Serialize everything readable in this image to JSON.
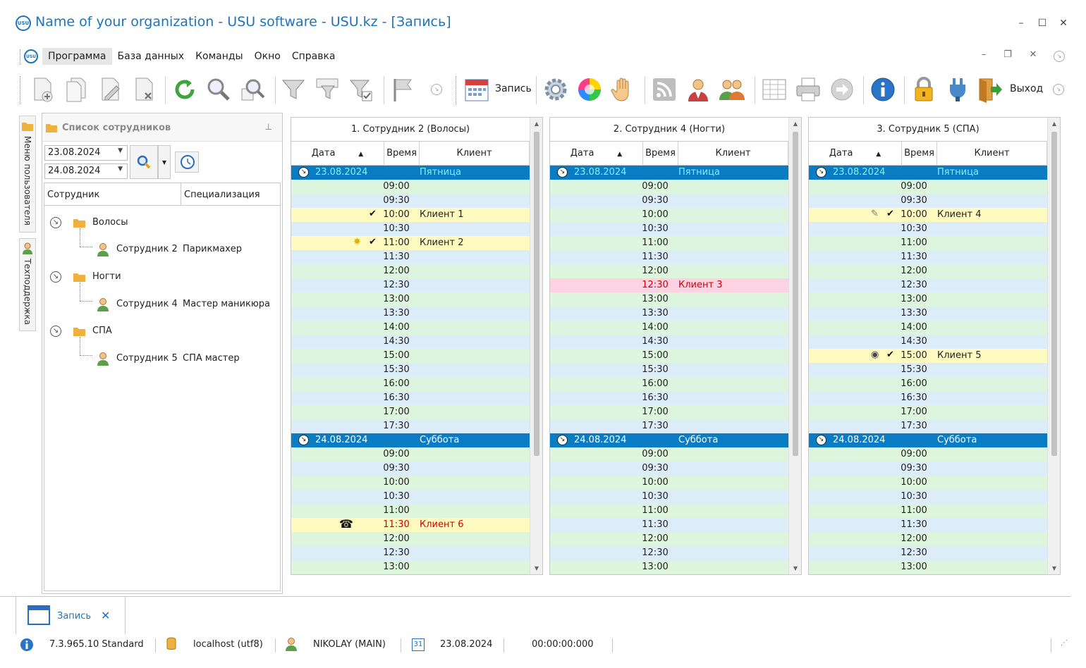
{
  "window": {
    "title": "Name of your organization - USU software - USU.kz - [Запись]",
    "logo_text": "USU",
    "controls": [
      "–",
      "☐",
      "✕"
    ]
  },
  "menu": {
    "items": [
      "Программа",
      "База данных",
      "Команды",
      "Окно",
      "Справка"
    ],
    "mdi_controls": [
      "–",
      "❐",
      "✕"
    ]
  },
  "toolbar": {
    "record_label": "Запись",
    "exit_label": "Выход"
  },
  "side_tabs": {
    "user_menu": "Меню пользователя",
    "support": "Техподдержка"
  },
  "employees_panel": {
    "title": "Список сотрудников",
    "date_from": "23.08.2024",
    "date_to": "24.08.2024",
    "columns": [
      "Сотрудник",
      "Специализация"
    ],
    "groups": [
      {
        "name": "Волосы",
        "employee": "Сотрудник 2",
        "specialization": "Парикмахер"
      },
      {
        "name": "Ногти",
        "employee": "Сотрудник 4",
        "specialization": "Мастер маникюра"
      },
      {
        "name": "СПА",
        "employee": "Сотрудник 5",
        "specialization": "СПА мастер"
      }
    ]
  },
  "schedule": {
    "columns": [
      "Дата",
      "Время",
      "Клиент"
    ],
    "day1": {
      "date": "23.08.2024",
      "dow": "Пятница"
    },
    "day2": {
      "date": "24.08.2024",
      "dow": "Суббота"
    },
    "times_day1": [
      "09:00",
      "09:30",
      "10:00",
      "10:30",
      "11:00",
      "11:30",
      "12:00",
      "12:30",
      "13:00",
      "13:30",
      "14:00",
      "14:30",
      "15:00",
      "15:30",
      "16:00",
      "16:30",
      "17:00",
      "17:30"
    ],
    "times_day2": [
      "09:00",
      "09:30",
      "10:00",
      "10:30",
      "11:00",
      "11:30",
      "12:00",
      "12:30",
      "13:00"
    ],
    "panels": [
      {
        "title": "1. Сотрудник 2 (Волосы)",
        "bookings": [
          {
            "day": 1,
            "time": "10:00",
            "client": "Клиент 1",
            "color": "yellow",
            "check": true,
            "mark": ""
          },
          {
            "day": 1,
            "time": "11:00",
            "client": "Клиент 2",
            "color": "yellow",
            "check": true,
            "mark": "✸"
          },
          {
            "day": 2,
            "time": "11:30",
            "client": "Клиент 6",
            "color": "yellow-red",
            "check": false,
            "mark": "☎"
          }
        ]
      },
      {
        "title": "2. Сотрудник 4 (Ногти)",
        "bookings": [
          {
            "day": 1,
            "time": "12:30",
            "client": "Клиент 3",
            "color": "pink",
            "check": false,
            "mark": ""
          }
        ]
      },
      {
        "title": "3. Сотрудник 5 (СПА)",
        "bookings": [
          {
            "day": 1,
            "time": "10:00",
            "client": "Клиент 4",
            "color": "yellow",
            "check": true,
            "mark": "✎"
          },
          {
            "day": 1,
            "time": "15:00",
            "client": "Клиент 5",
            "color": "yellow",
            "check": true,
            "mark": "◉"
          }
        ]
      }
    ]
  },
  "doc_tab": {
    "label": "Запись",
    "close": "✕"
  },
  "status": {
    "version": "7.3.965.10 Standard",
    "server": "localhost (utf8)",
    "user": "NIKOLAY (MAIN)",
    "calendar_day": "31",
    "date": "23.08.2024",
    "timer": "00:00:00:000"
  },
  "colors": {
    "accent": "#1e73be",
    "day_header": "#0a7cc4",
    "row_green": "#ddf4dd",
    "row_blue": "#dcecf8",
    "booked_yellow": "#fffbc0",
    "booked_pink": "#fdd3e4"
  }
}
